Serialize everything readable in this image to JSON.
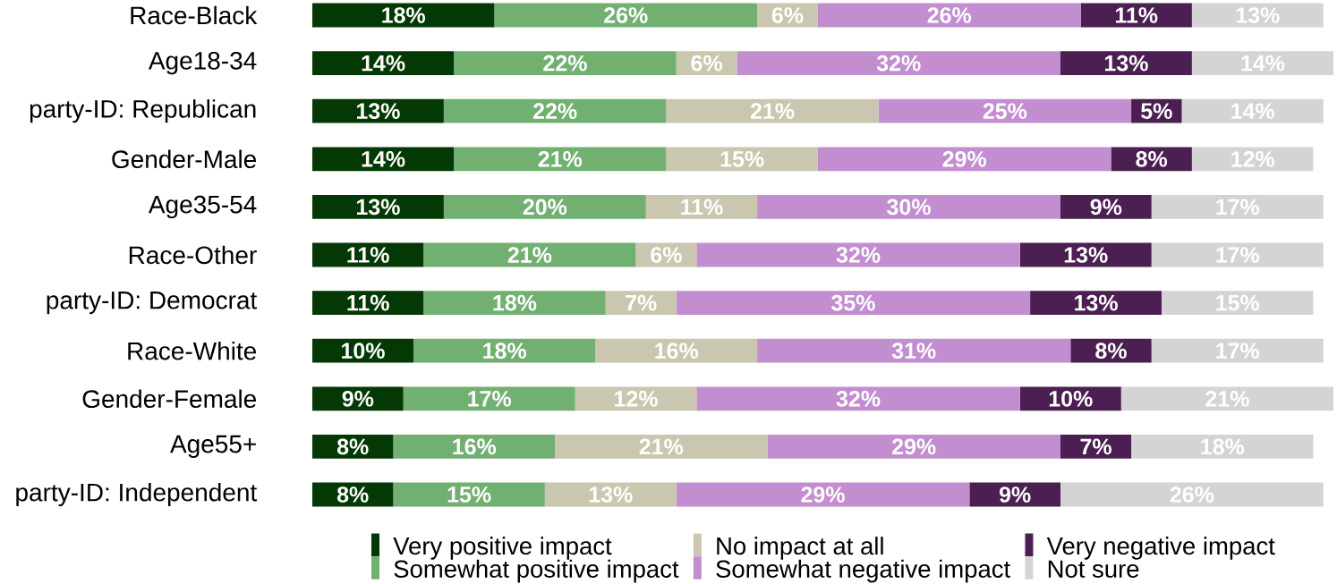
{
  "chart_data": {
    "type": "bar",
    "orientation": "horizontal",
    "stacked": true,
    "legend": "bottom",
    "tick_labels": "y",
    "categories": [
      "Race-Black",
      "Age18-34",
      "party-ID: Republican",
      "Gender-Male",
      "Age35-54",
      "Race-Other",
      "party-ID: Democrat",
      "Race-White",
      "Gender-Female",
      "Age55+",
      "party-ID: Independent"
    ],
    "series": [
      {
        "name": "Very positive impact",
        "color": "#043804",
        "values": [
          18,
          14,
          13,
          14,
          13,
          11,
          11,
          10,
          9,
          8,
          8
        ],
        "value_labels": [
          "18%",
          "14%",
          "13%",
          "14%",
          "13%",
          "11%",
          "11%",
          "10%",
          "9%",
          "8%",
          "8%"
        ]
      },
      {
        "name": "Somewhat positive impact",
        "color": "#72b072",
        "values": [
          26,
          22,
          22,
          21,
          20,
          21,
          18,
          18,
          17,
          16,
          15
        ],
        "value_labels": [
          "26%",
          "22%",
          "22%",
          "21%",
          "20%",
          "21%",
          "18%",
          "18%",
          "17%",
          "16%",
          "15%"
        ]
      },
      {
        "name": "No impact at all",
        "color": "#cbc6b0",
        "values": [
          6,
          6,
          21,
          15,
          11,
          6,
          7,
          16,
          12,
          21,
          13
        ],
        "value_labels": [
          "6%",
          "6%",
          "21%",
          "15%",
          "11%",
          "6%",
          "7%",
          "16%",
          "12%",
          "21%",
          "13%"
        ]
      },
      {
        "name": "Somewhat negative impact",
        "color": "#c38ecf",
        "values": [
          26,
          32,
          25,
          29,
          30,
          32,
          35,
          31,
          32,
          29,
          29
        ],
        "value_labels": [
          "26%",
          "32%",
          "25%",
          "29%",
          "30%",
          "32%",
          "35%",
          "31%",
          "32%",
          "29%",
          "29%"
        ]
      },
      {
        "name": "Very negative impact",
        "color": "#4b1f51",
        "values": [
          11,
          13,
          5,
          8,
          9,
          13,
          13,
          8,
          10,
          7,
          9
        ],
        "value_labels": [
          "11%",
          "13%",
          "5%",
          "8%",
          "9%",
          "13%",
          "13%",
          "8%",
          "10%",
          "7%",
          "9%"
        ]
      },
      {
        "name": "Not sure",
        "color": "#d4d4d4",
        "values": [
          13,
          14,
          14,
          12,
          17,
          17,
          15,
          17,
          21,
          18,
          26
        ],
        "value_labels": [
          "13%",
          "14%",
          "14%",
          "12%",
          "17%",
          "17%",
          "15%",
          "17%",
          "21%",
          "18%",
          "26%"
        ]
      }
    ]
  }
}
